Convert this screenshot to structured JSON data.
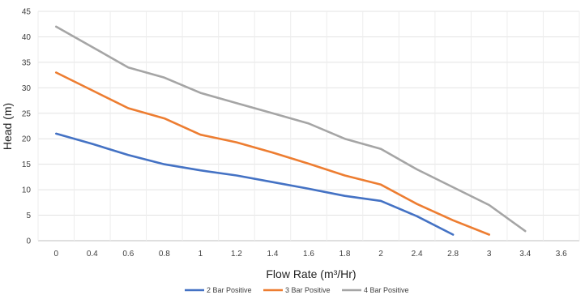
{
  "chart_data": {
    "type": "line",
    "title": "",
    "xlabel": "Flow Rate (m³/Hr)",
    "ylabel": "Head (m)",
    "categories": [
      "0",
      "0.4",
      "0.6",
      "0.8",
      "1",
      "1.2",
      "1.4",
      "1.6",
      "1.8",
      "2",
      "2.4",
      "2.8",
      "3",
      "3.4",
      "3.6"
    ],
    "ylim": [
      0,
      45
    ],
    "y_ticks": [
      0,
      5,
      10,
      15,
      20,
      25,
      30,
      35,
      40,
      45
    ],
    "grid": true,
    "legend_position": "bottom",
    "series": [
      {
        "name": "2 Bar Positive",
        "color": "#4472C4",
        "values": [
          21,
          19,
          16.8,
          15,
          13.8,
          12.8,
          11.5,
          10.2,
          8.8,
          7.8,
          4.8,
          1.2,
          null,
          null,
          null
        ]
      },
      {
        "name": "3 Bar Positive",
        "color": "#ED7D31",
        "values": [
          33,
          29.5,
          26,
          24,
          20.8,
          19.3,
          17.3,
          15.1,
          12.8,
          11,
          7.2,
          4,
          1.2,
          null,
          null
        ]
      },
      {
        "name": "4 Bar Positive",
        "color": "#A5A5A5",
        "values": [
          42,
          38,
          34,
          32,
          29,
          27,
          25,
          23,
          20,
          18,
          14,
          10.5,
          7,
          1.9,
          null
        ]
      }
    ]
  }
}
